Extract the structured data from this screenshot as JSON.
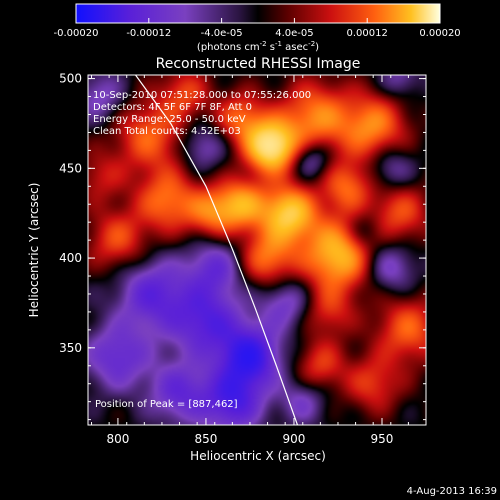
{
  "chart_data": {
    "type": "heatmap",
    "title": "Reconstructed RHESSI Image",
    "xlabel": "Heliocentric X (arcsec)",
    "ylabel": "Heliocentric Y (arcsec)",
    "xlim": [
      783,
      975
    ],
    "ylim": [
      307,
      502
    ],
    "x_ticks": [
      800,
      850,
      900,
      950
    ],
    "y_ticks": [
      350,
      400,
      450,
      500
    ],
    "colorbar": {
      "range": [
        -0.0002,
        0.0002
      ],
      "tick_values": [
        -0.0002,
        -0.00012,
        -4e-05,
        4e-05,
        0.00012,
        0.0002
      ],
      "tick_labels": [
        "-0.00020",
        "-0.00012",
        "-4.0e-05",
        "4.0e-05",
        "0.00012",
        "0.00020"
      ],
      "unit_label": "(photons cm",
      "unit_exp1": "-2",
      "unit_mid": " s",
      "unit_exp2": "-1",
      "unit_mid2": " asec",
      "unit_exp3": "-2",
      "unit_end": ")"
    },
    "annotations": [
      "10-Sep-2010 07:51:28.000 to 07:55:26.000",
      "Detectors: 4F 5F 6F 7F 8F, Att 0",
      "Energy Range: 25.0 - 50.0 keV",
      "Clean     Total counts: 4.52E+03"
    ],
    "peak_label": "Position of Peak = [887,462]",
    "peak": [
      887,
      462
    ],
    "limb_curve": [
      [
        810,
        502
      ],
      [
        830,
        475
      ],
      [
        850,
        440
      ],
      [
        865,
        405
      ],
      [
        878,
        372
      ],
      [
        890,
        340
      ],
      [
        902,
        307
      ]
    ],
    "blobs": [
      {
        "x": 887,
        "y": 462,
        "v": 1.0,
        "s": 10
      },
      {
        "x": 897,
        "y": 425,
        "v": 0.8,
        "s": 11
      },
      {
        "x": 925,
        "y": 402,
        "v": 0.75,
        "s": 14
      },
      {
        "x": 870,
        "y": 430,
        "v": 0.6,
        "s": 10
      },
      {
        "x": 912,
        "y": 478,
        "v": 0.55,
        "s": 14
      },
      {
        "x": 870,
        "y": 478,
        "v": 0.45,
        "s": 10
      },
      {
        "x": 945,
        "y": 473,
        "v": 0.55,
        "s": 13
      },
      {
        "x": 930,
        "y": 440,
        "v": 0.45,
        "s": 10
      },
      {
        "x": 960,
        "y": 425,
        "v": 0.4,
        "s": 12
      },
      {
        "x": 885,
        "y": 400,
        "v": 0.5,
        "s": 11
      },
      {
        "x": 853,
        "y": 425,
        "v": 0.45,
        "s": 10
      },
      {
        "x": 828,
        "y": 432,
        "v": 0.5,
        "s": 12
      },
      {
        "x": 818,
        "y": 468,
        "v": 0.45,
        "s": 14
      },
      {
        "x": 838,
        "y": 492,
        "v": 0.35,
        "s": 10
      },
      {
        "x": 800,
        "y": 410,
        "v": 0.4,
        "s": 12
      },
      {
        "x": 790,
        "y": 445,
        "v": 0.25,
        "s": 10
      },
      {
        "x": 965,
        "y": 360,
        "v": 0.45,
        "s": 13
      },
      {
        "x": 945,
        "y": 330,
        "v": 0.35,
        "s": 11
      },
      {
        "x": 915,
        "y": 340,
        "v": 0.35,
        "s": 10
      },
      {
        "x": 920,
        "y": 370,
        "v": 0.3,
        "s": 10
      },
      {
        "x": 820,
        "y": 380,
        "v": -0.5,
        "s": 14
      },
      {
        "x": 800,
        "y": 345,
        "v": -0.45,
        "s": 13
      },
      {
        "x": 850,
        "y": 365,
        "v": -0.55,
        "s": 14
      },
      {
        "x": 875,
        "y": 345,
        "v": -0.75,
        "s": 12
      },
      {
        "x": 865,
        "y": 320,
        "v": -0.6,
        "s": 12
      },
      {
        "x": 835,
        "y": 325,
        "v": -0.45,
        "s": 12
      },
      {
        "x": 855,
        "y": 395,
        "v": -0.4,
        "s": 11
      },
      {
        "x": 895,
        "y": 375,
        "v": -0.35,
        "s": 10
      },
      {
        "x": 910,
        "y": 455,
        "v": -0.35,
        "s": 8
      },
      {
        "x": 955,
        "y": 395,
        "v": -0.35,
        "s": 10
      },
      {
        "x": 955,
        "y": 450,
        "v": -0.3,
        "s": 9
      },
      {
        "x": 848,
        "y": 462,
        "v": -0.3,
        "s": 9
      },
      {
        "x": 790,
        "y": 490,
        "v": -0.3,
        "s": 10
      },
      {
        "x": 960,
        "y": 500,
        "v": -0.25,
        "s": 8
      },
      {
        "x": 905,
        "y": 320,
        "v": -0.3,
        "s": 9
      },
      {
        "x": 940,
        "y": 415,
        "v": -0.25,
        "s": 8
      }
    ]
  },
  "footer": {
    "timestamp": "4-Aug-2013 16:39"
  },
  "colors": {
    "background": "#000000",
    "text": "#ffffff",
    "limb_line": "#ffffff"
  }
}
